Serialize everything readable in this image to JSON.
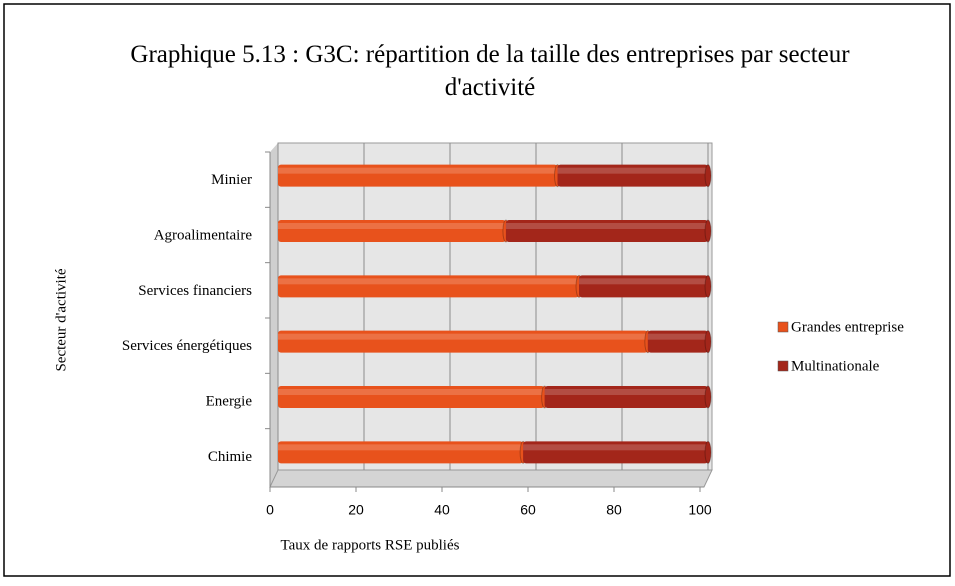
{
  "chart_data": {
    "type": "bar",
    "orientation": "horizontal",
    "stacked": true,
    "title": "Graphique 5.13 : G3C: répartition de la taille des entreprises par secteur d'activité",
    "xlabel": "Taux de rapports RSE publiés",
    "ylabel": "Secteur d'activité",
    "categories": [
      "Minier",
      "Agroalimentaire",
      "Services financiers",
      "Services énergétiques",
      "Energie",
      "Chimie"
    ],
    "series": [
      {
        "name": "Grandes entreprise",
        "color": "#e8521c",
        "values": [
          65,
          53,
          70,
          86,
          62,
          57
        ]
      },
      {
        "name": "Multinationale",
        "color": "#a3261a",
        "values": [
          35,
          47,
          30,
          14,
          38,
          43
        ]
      }
    ],
    "xlim": [
      0,
      100
    ],
    "xticks": [
      0,
      20,
      40,
      60,
      80,
      100
    ],
    "grid": true,
    "legend": "right"
  }
}
